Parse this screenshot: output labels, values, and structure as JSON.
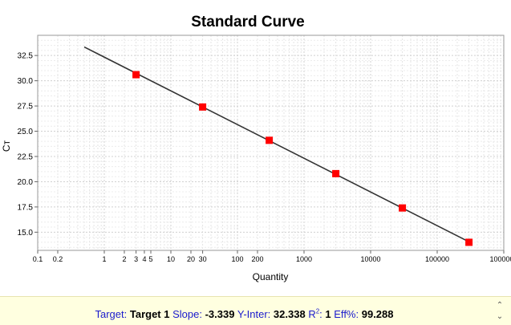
{
  "chart_data": {
    "type": "scatter",
    "title": "Standard Curve",
    "xlabel": "Quantity",
    "ylabel": "Cт",
    "xscale": "log",
    "xlim": [
      0.1,
      1000000
    ],
    "ylim": [
      13.2,
      34.5
    ],
    "grid": true,
    "x_ticks": [
      {
        "value": 0.1,
        "label": "0.1"
      },
      {
        "value": 0.2,
        "label": "0.2"
      },
      {
        "value": 1,
        "label": "1"
      },
      {
        "value": 2,
        "label": "2"
      },
      {
        "value": 3,
        "label": "3"
      },
      {
        "value": 4,
        "label": "4"
      },
      {
        "value": 5,
        "label": "5"
      },
      {
        "value": 10,
        "label": "10"
      },
      {
        "value": 20,
        "label": "20"
      },
      {
        "value": 30,
        "label": "30"
      },
      {
        "value": 100,
        "label": "100"
      },
      {
        "value": 200,
        "label": "200"
      },
      {
        "value": 1000,
        "label": "1000"
      },
      {
        "value": 10000,
        "label": "10000"
      },
      {
        "value": 100000,
        "label": "100000"
      },
      {
        "value": 1000000,
        "label": "1000000"
      }
    ],
    "y_ticks": [
      {
        "value": 15.0,
        "label": "15.0"
      },
      {
        "value": 17.5,
        "label": "17.5"
      },
      {
        "value": 20.0,
        "label": "20.0"
      },
      {
        "value": 22.5,
        "label": "22.5"
      },
      {
        "value": 25.0,
        "label": "25.0"
      },
      {
        "value": 27.5,
        "label": "27.5"
      },
      {
        "value": 30.0,
        "label": "30.0"
      },
      {
        "value": 32.5,
        "label": "32.5"
      }
    ],
    "points": [
      {
        "x": 3,
        "y": 30.6
      },
      {
        "x": 30,
        "y": 27.4
      },
      {
        "x": 300,
        "y": 24.1
      },
      {
        "x": 3000,
        "y": 20.8
      },
      {
        "x": 30000,
        "y": 17.4
      },
      {
        "x": 300000,
        "y": 14.0
      }
    ],
    "fit_line": {
      "x_start": 0.5,
      "x_end": 300000,
      "slope": -3.339,
      "intercept": 32.338
    },
    "point_color": "#ff0000",
    "line_color": "#333333"
  },
  "status": {
    "target_label": "Target:",
    "target_value": "Target 1",
    "slope_label": "Slope:",
    "slope_value": "-3.339",
    "yinter_label": "Y-Inter:",
    "yinter_value": "32.338",
    "r2_label": "R",
    "r2_sup": "2",
    "r2_colon": ":",
    "r2_value": "1",
    "eff_label": "Eff%:",
    "eff_value": "99.288"
  },
  "scroll": {
    "up_icon": "chevron-up-icon",
    "down_icon": "chevron-down-icon"
  }
}
